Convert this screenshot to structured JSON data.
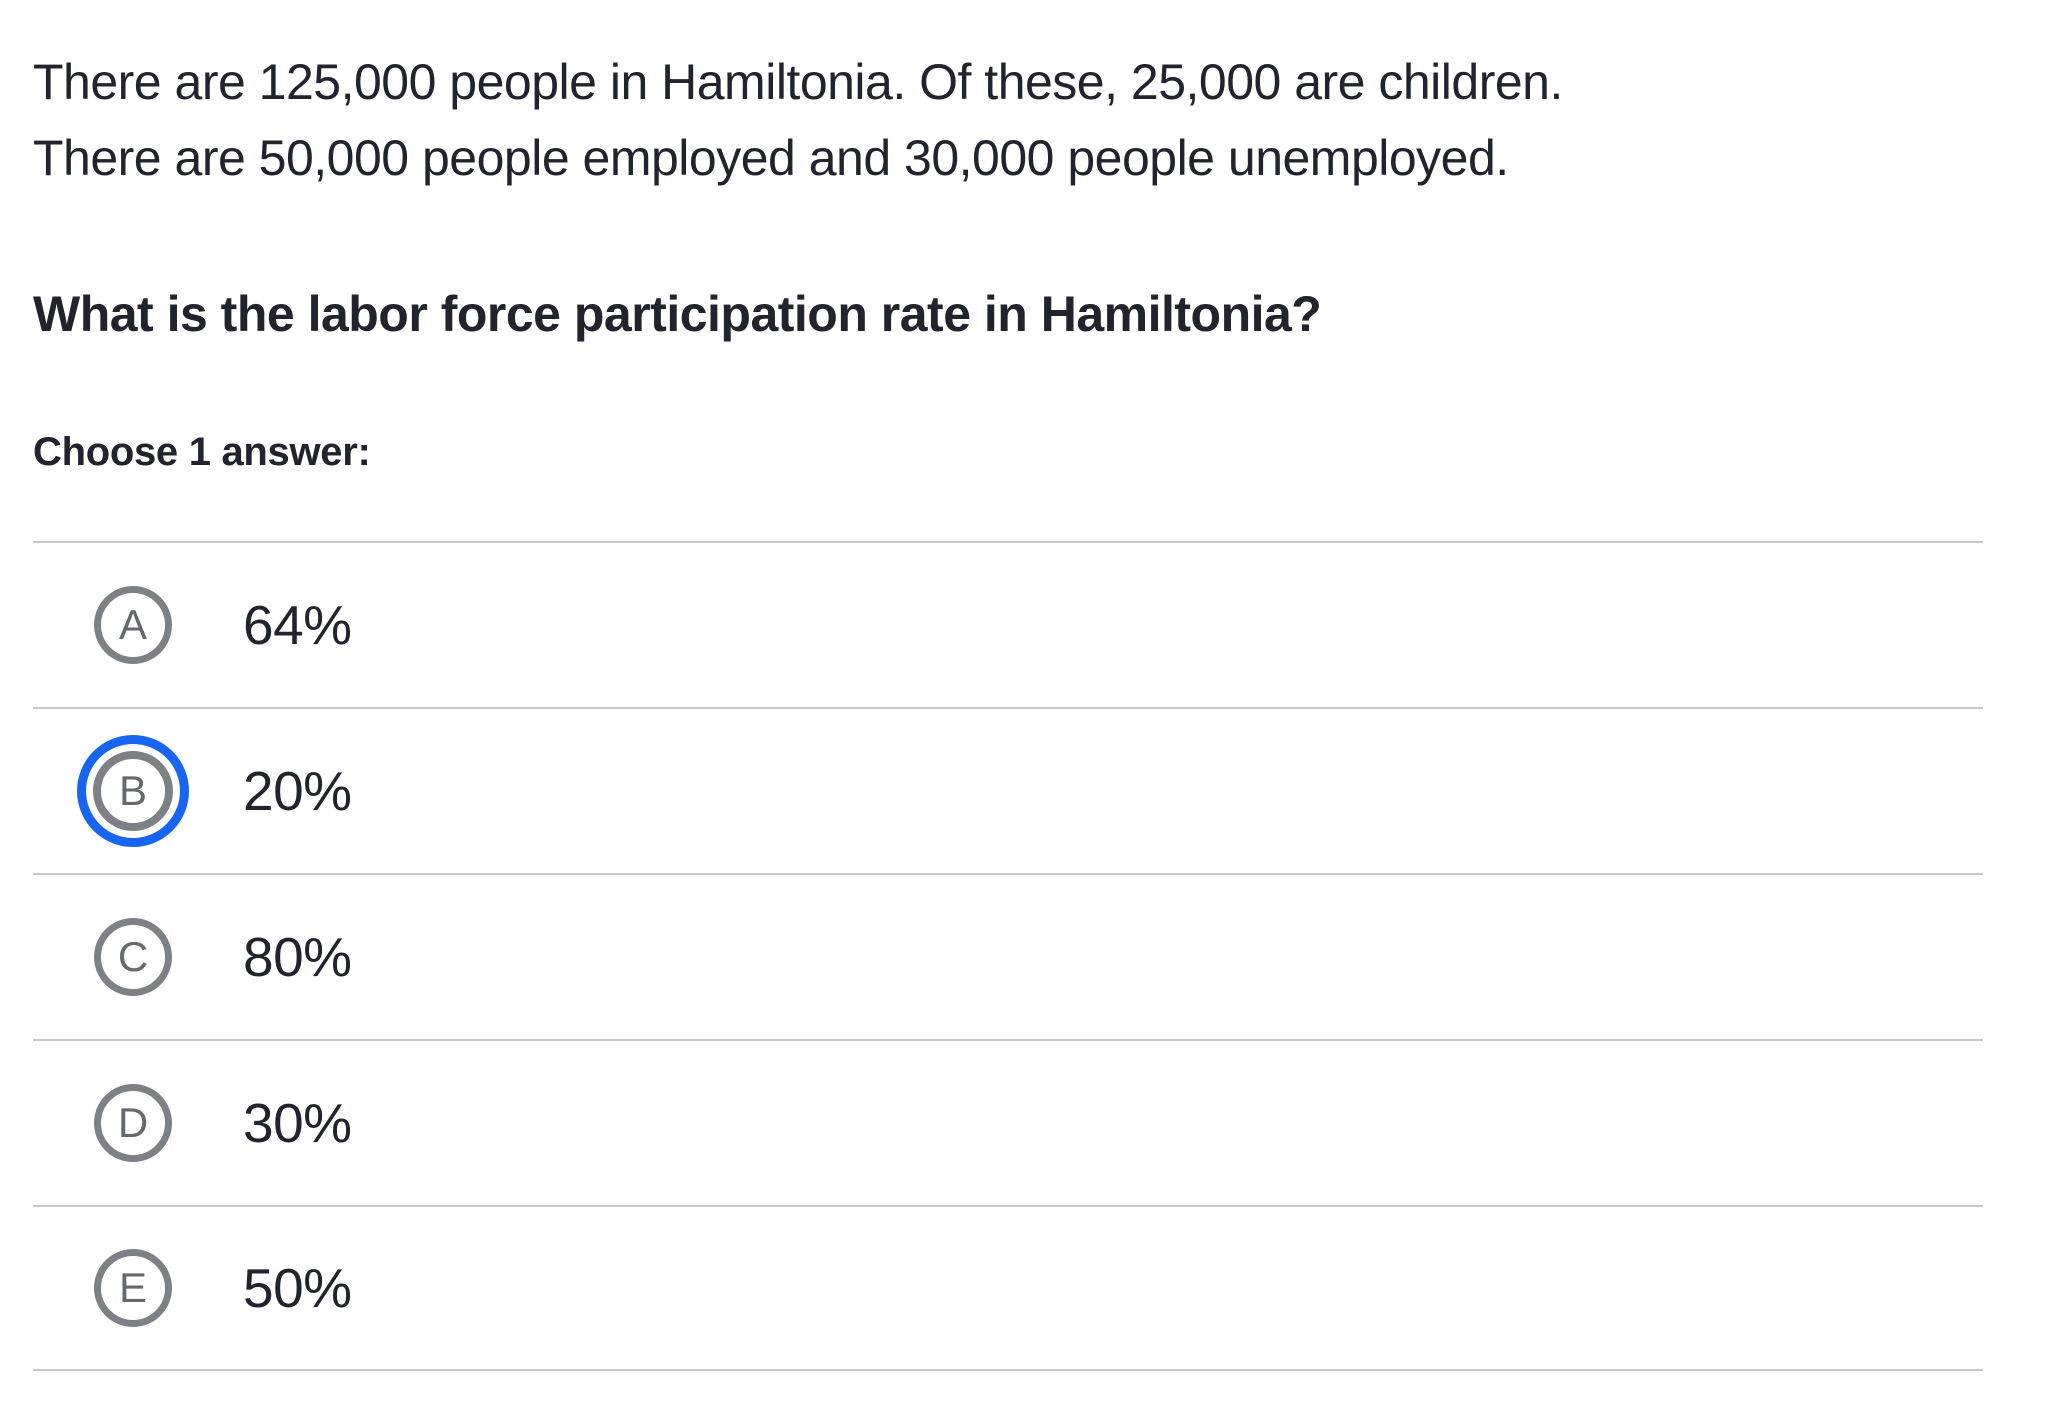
{
  "question": {
    "paragraph_lines": [
      "There are 125,000 people in Hamiltonia. Of these, 25,000 are children.",
      "There are 50,000 people employed and 30,000 people unemployed."
    ],
    "prompt": "What is the labor force participation rate in Hamiltonia?",
    "choose_label": "Choose 1 answer:"
  },
  "choices": [
    {
      "letter": "A",
      "label": "64%",
      "selected": false
    },
    {
      "letter": "B",
      "label": "20%",
      "selected": true
    },
    {
      "letter": "C",
      "label": "80%",
      "selected": false
    },
    {
      "letter": "D",
      "label": "30%",
      "selected": false
    },
    {
      "letter": "E",
      "label": "50%",
      "selected": false
    }
  ],
  "colors": {
    "text": "#21242d",
    "accent_blue": "#1865f2",
    "circle_gray": "#7d8085",
    "letter_gray": "#66696e",
    "divider": "#c7c9cc",
    "background": "#ffffff"
  }
}
